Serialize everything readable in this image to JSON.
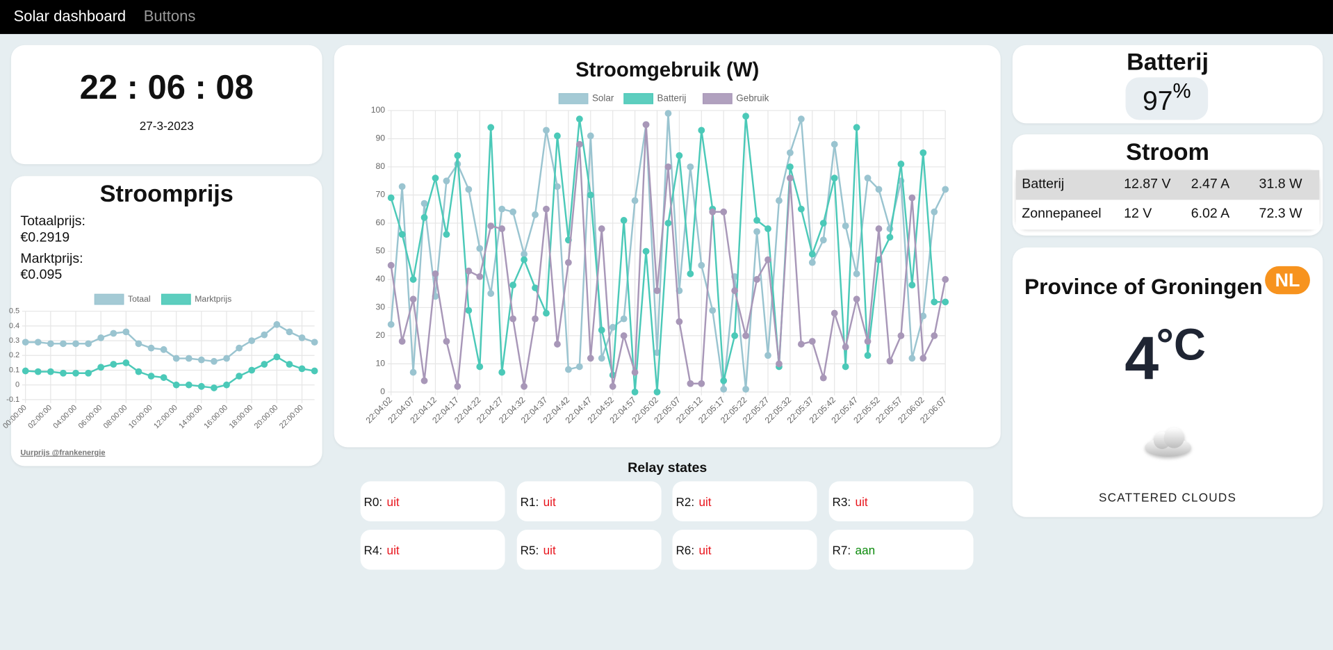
{
  "nav": {
    "brand": "Solar dashboard",
    "link": "Buttons"
  },
  "clock": {
    "time": "22 : 06 : 08",
    "date": "27-3-2023"
  },
  "price": {
    "title": "Stroomprijs",
    "items": [
      {
        "label": "Totaalprijs:",
        "value": "€0.2919"
      },
      {
        "label": "Marktprijs:",
        "value": "€0.095"
      }
    ],
    "credit": "Uurprijs @frankenergie"
  },
  "chart_data": [
    {
      "type": "line",
      "categories": [
        "00:00:00",
        null,
        "02:00:00",
        null,
        "04:00:00",
        null,
        "06:00:00",
        null,
        "08:00:00",
        null,
        "10:00:00",
        null,
        "12:00:00",
        null,
        "14:00:00",
        null,
        "16:00:00",
        null,
        "18:00:00",
        null,
        "20:00:00",
        null,
        "22:00:00",
        null
      ],
      "series": [
        {
          "name": "Totaal",
          "color": "#9ac4d0",
          "values": [
            0.29,
            0.29,
            0.28,
            0.28,
            0.28,
            0.28,
            0.32,
            0.35,
            0.36,
            0.28,
            0.25,
            0.24,
            0.18,
            0.18,
            0.17,
            0.16,
            0.18,
            0.25,
            0.3,
            0.34,
            0.41,
            0.36,
            0.32,
            0.29
          ]
        },
        {
          "name": "Marktprijs",
          "color": "#4bc9b8",
          "values": [
            0.095,
            0.09,
            0.09,
            0.08,
            0.08,
            0.08,
            0.12,
            0.14,
            0.15,
            0.09,
            0.06,
            0.05,
            0,
            0,
            -0.01,
            -0.02,
            0,
            0.06,
            0.1,
            0.14,
            0.19,
            0.14,
            0.11,
            0.095
          ]
        }
      ],
      "ylim": [
        -0.1,
        0.5
      ],
      "yticks": [
        -0.1,
        0,
        0.1,
        0.2,
        0.3,
        0.4,
        0.5
      ],
      "grid": true,
      "legend": "top"
    },
    {
      "type": "line",
      "title": "Stroomgebruik (W)",
      "categories": [
        "22:04:02",
        null,
        "22:04:07",
        null,
        "22:04:12",
        null,
        "22:04:17",
        null,
        "22:04:22",
        null,
        "22:04:27",
        null,
        "22:04:32",
        null,
        "22:04:37",
        null,
        "22:04:42",
        null,
        "22:04:47",
        null,
        "22:04:52",
        null,
        "22:04:57",
        null,
        "22:05:02",
        null,
        "22:05:07",
        null,
        "22:05:12",
        null,
        "22:05:17",
        null,
        "22:05:22",
        null,
        "22:05:27",
        null,
        "22:05:32",
        null,
        "22:05:37",
        null,
        "22:05:42",
        null,
        "22:05:47",
        null,
        "22:05:52",
        null,
        "22:05:57",
        null,
        "22:06:02",
        null,
        "22:06:07"
      ],
      "series": [
        {
          "name": "Solar",
          "color": "#9ac4d0",
          "values": [
            24,
            73,
            7,
            67,
            34,
            75,
            81,
            72,
            51,
            35,
            65,
            64,
            49,
            63,
            93,
            73,
            8,
            9,
            91,
            12,
            23,
            26,
            68,
            95,
            14,
            99,
            36,
            80,
            45,
            29,
            1,
            41,
            1,
            57,
            13,
            68,
            85,
            97,
            46,
            54,
            88,
            59,
            42,
            76,
            72,
            58,
            75,
            12,
            27,
            64,
            72
          ]
        },
        {
          "name": "Batterij",
          "color": "#4bc9b8",
          "values": [
            69,
            56,
            40,
            62,
            76,
            56,
            84,
            29,
            9,
            94,
            7,
            38,
            47,
            37,
            28,
            91,
            54,
            97,
            70,
            22,
            6,
            61,
            0,
            50,
            0,
            60,
            84,
            42,
            93,
            65,
            4,
            20,
            98,
            61,
            58,
            9,
            80,
            65,
            49,
            60,
            76,
            9,
            94,
            13,
            47,
            55,
            81,
            38,
            85,
            32,
            32
          ]
        },
        {
          "name": "Gebruik",
          "color": "#a897b8",
          "values": [
            45,
            18,
            33,
            4,
            42,
            18,
            2,
            43,
            41,
            59,
            58,
            26,
            2,
            26,
            65,
            17,
            46,
            88,
            12,
            58,
            2,
            20,
            7,
            95,
            36,
            80,
            25,
            3,
            3,
            64,
            64,
            36,
            20,
            40,
            47,
            10,
            76,
            17,
            18,
            5,
            28,
            16,
            33,
            18,
            58,
            11,
            20,
            69,
            12,
            20,
            40
          ]
        }
      ],
      "ylim": [
        0,
        100
      ],
      "yticks": [
        0,
        10,
        20,
        30,
        40,
        50,
        60,
        70,
        80,
        90,
        100
      ],
      "grid": true,
      "legend": "top"
    }
  ],
  "relays": {
    "title": "Relay states",
    "items": [
      {
        "name": "R0:",
        "state": "uit",
        "color": "#e8141c"
      },
      {
        "name": "R1:",
        "state": "uit",
        "color": "#e8141c"
      },
      {
        "name": "R2:",
        "state": "uit",
        "color": "#e8141c"
      },
      {
        "name": "R3:",
        "state": "uit",
        "color": "#e8141c"
      },
      {
        "name": "R4:",
        "state": "uit",
        "color": "#e8141c"
      },
      {
        "name": "R5:",
        "state": "uit",
        "color": "#e8141c"
      },
      {
        "name": "R6:",
        "state": "uit",
        "color": "#e8141c"
      },
      {
        "name": "R7:",
        "state": "aan",
        "color": "#0a8a0a"
      }
    ]
  },
  "battery": {
    "title": "Batterij",
    "value": 97,
    "unit": "%"
  },
  "power": {
    "title": "Stroom",
    "rows": [
      [
        "Batterij",
        "12.87 V",
        "2.47 A",
        "31.8 W"
      ],
      [
        "Zonnepaneel",
        "12 V",
        "6.02 A",
        "72.3 W"
      ]
    ]
  },
  "weather": {
    "location": "Province of Groningen",
    "country": "NL",
    "temp": "4",
    "unit": "°C",
    "description": "SCATTERED CLOUDS"
  }
}
